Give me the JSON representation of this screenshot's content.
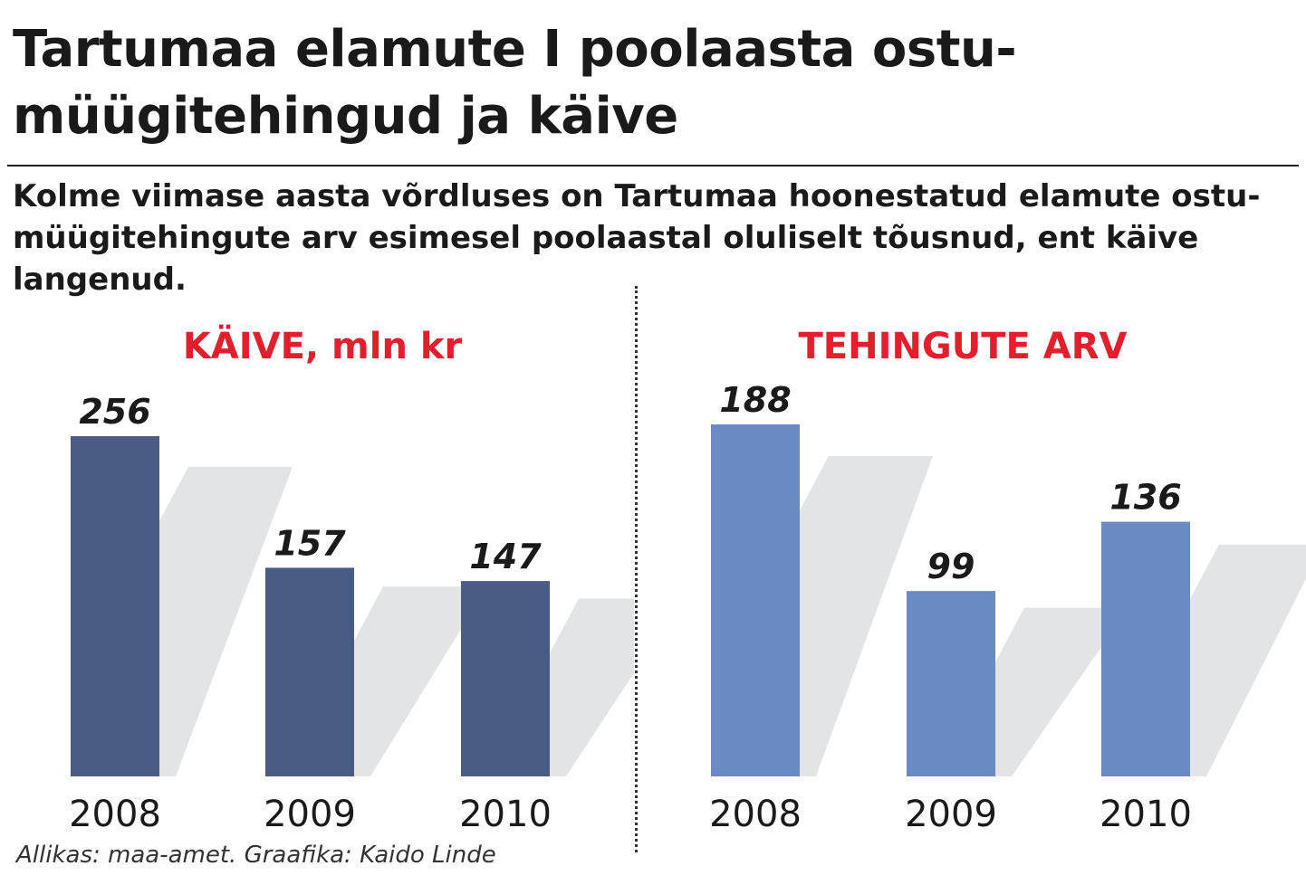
{
  "headline": "Tartumaa elamute I poolaasta ostu-müügitehingud ja käive",
  "lede": "Kolme viimase aasta võrdluses on Tartumaa hoonestatud elamute ostu-müügitehingute arv esimesel poolaastal oluliselt tõusnud, ent käive langenud.",
  "source": "Allikas: maa-amet. Graafika: Kaido Linde",
  "colors": {
    "title_red": "#e31e2d",
    "shadow": "#e3e4e6",
    "text": "#1a1a1a"
  },
  "chart_data": [
    {
      "type": "bar",
      "title": "KÄIVE, mln kr",
      "categories": [
        "2008",
        "2009",
        "2010"
      ],
      "values": [
        256,
        157,
        147
      ],
      "value_labels": [
        "256",
        "157",
        "147"
      ],
      "color": "#4a5c86"
    },
    {
      "type": "bar",
      "title": "TEHINGUTE ARV",
      "categories": [
        "2008",
        "2009",
        "2010"
      ],
      "values": [
        188,
        99,
        136
      ],
      "value_labels": [
        "188",
        "99",
        "136"
      ],
      "color": "#6b89c4"
    }
  ]
}
